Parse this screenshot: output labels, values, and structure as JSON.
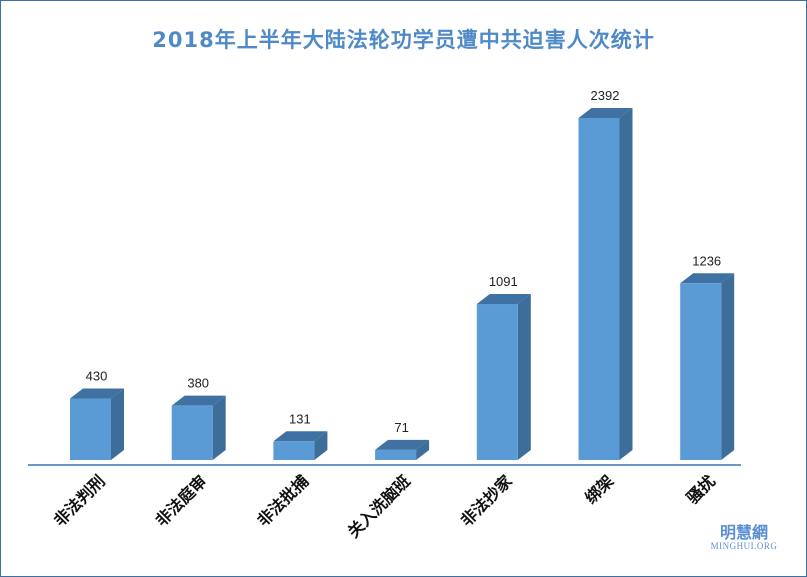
{
  "chart_data": {
    "type": "bar",
    "title": "2018年上半年大陆法轮功学员遭中共迫害人次统计",
    "categories": [
      "非法判刑",
      "非法庭审",
      "非法批捕",
      "关入洗脑班",
      "非法抄家",
      "绑架",
      "骚扰"
    ],
    "values": [
      430,
      380,
      131,
      71,
      1091,
      2392,
      1236
    ],
    "xlabel": "",
    "ylabel": "",
    "ylim": [
      0,
      2600
    ],
    "grid": false,
    "legend": "none",
    "colors": {
      "bar_front": "#5b9bd5",
      "bar_side": "#3d6d99",
      "bar_top": "#3f72a3",
      "axis": "#3d74b8"
    }
  },
  "watermark": {
    "cn": "明慧網",
    "en": "MINGHUI.ORG"
  }
}
